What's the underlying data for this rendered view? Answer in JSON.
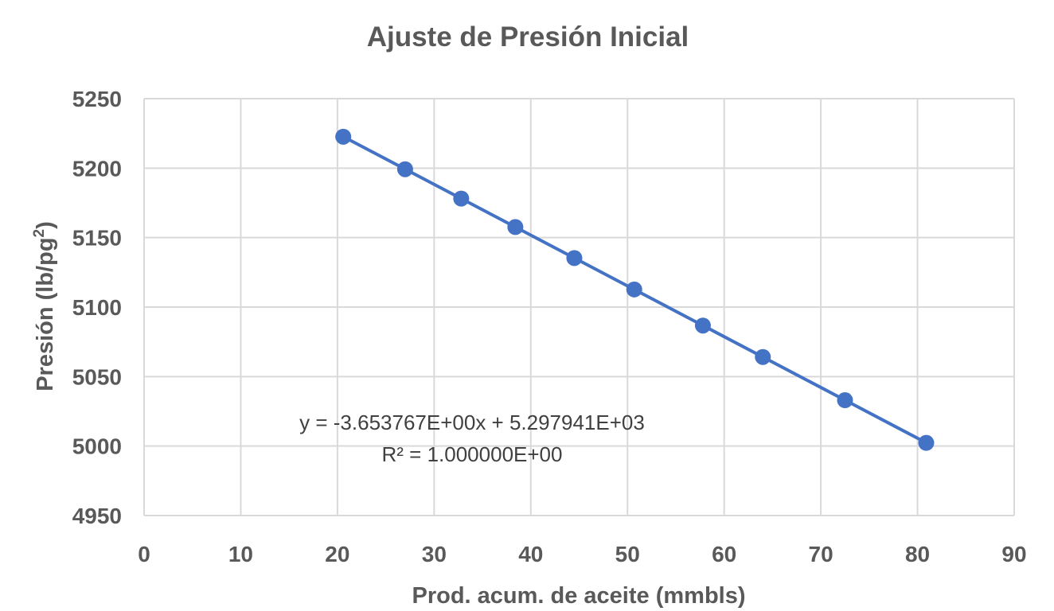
{
  "chart_data": {
    "type": "scatter",
    "title": "Ajuste de Presión Inicial",
    "xlabel": "Prod. acum. de aceite (mmbls)",
    "ylabel": "Presión (lb/pg",
    "ylabel_sup": "2",
    "ylabel_close": ")",
    "xlim": [
      0,
      90
    ],
    "ylim": [
      4950,
      5250
    ],
    "x_ticks": [
      0,
      10,
      20,
      30,
      40,
      50,
      60,
      70,
      80,
      90
    ],
    "y_ticks": [
      4950,
      5000,
      5050,
      5100,
      5150,
      5200,
      5250
    ],
    "grid": true,
    "series": [
      {
        "color": "#4472c4",
        "x": [
          20.6,
          27.0,
          32.8,
          38.4,
          44.5,
          50.7,
          57.8,
          64.0,
          72.5,
          80.9
        ],
        "y": [
          5222.6,
          5199.2,
          5178.1,
          5157.6,
          5135.3,
          5112.7,
          5086.7,
          5064.1,
          5033.0,
          5002.3
        ]
      }
    ],
    "trendline": {
      "type": "linear",
      "slope": -3.653767,
      "intercept": 5297.941,
      "equation": "y = -3.653767E+00x + 5.297941E+03",
      "r2": "R² = 1.000000E+00"
    }
  }
}
